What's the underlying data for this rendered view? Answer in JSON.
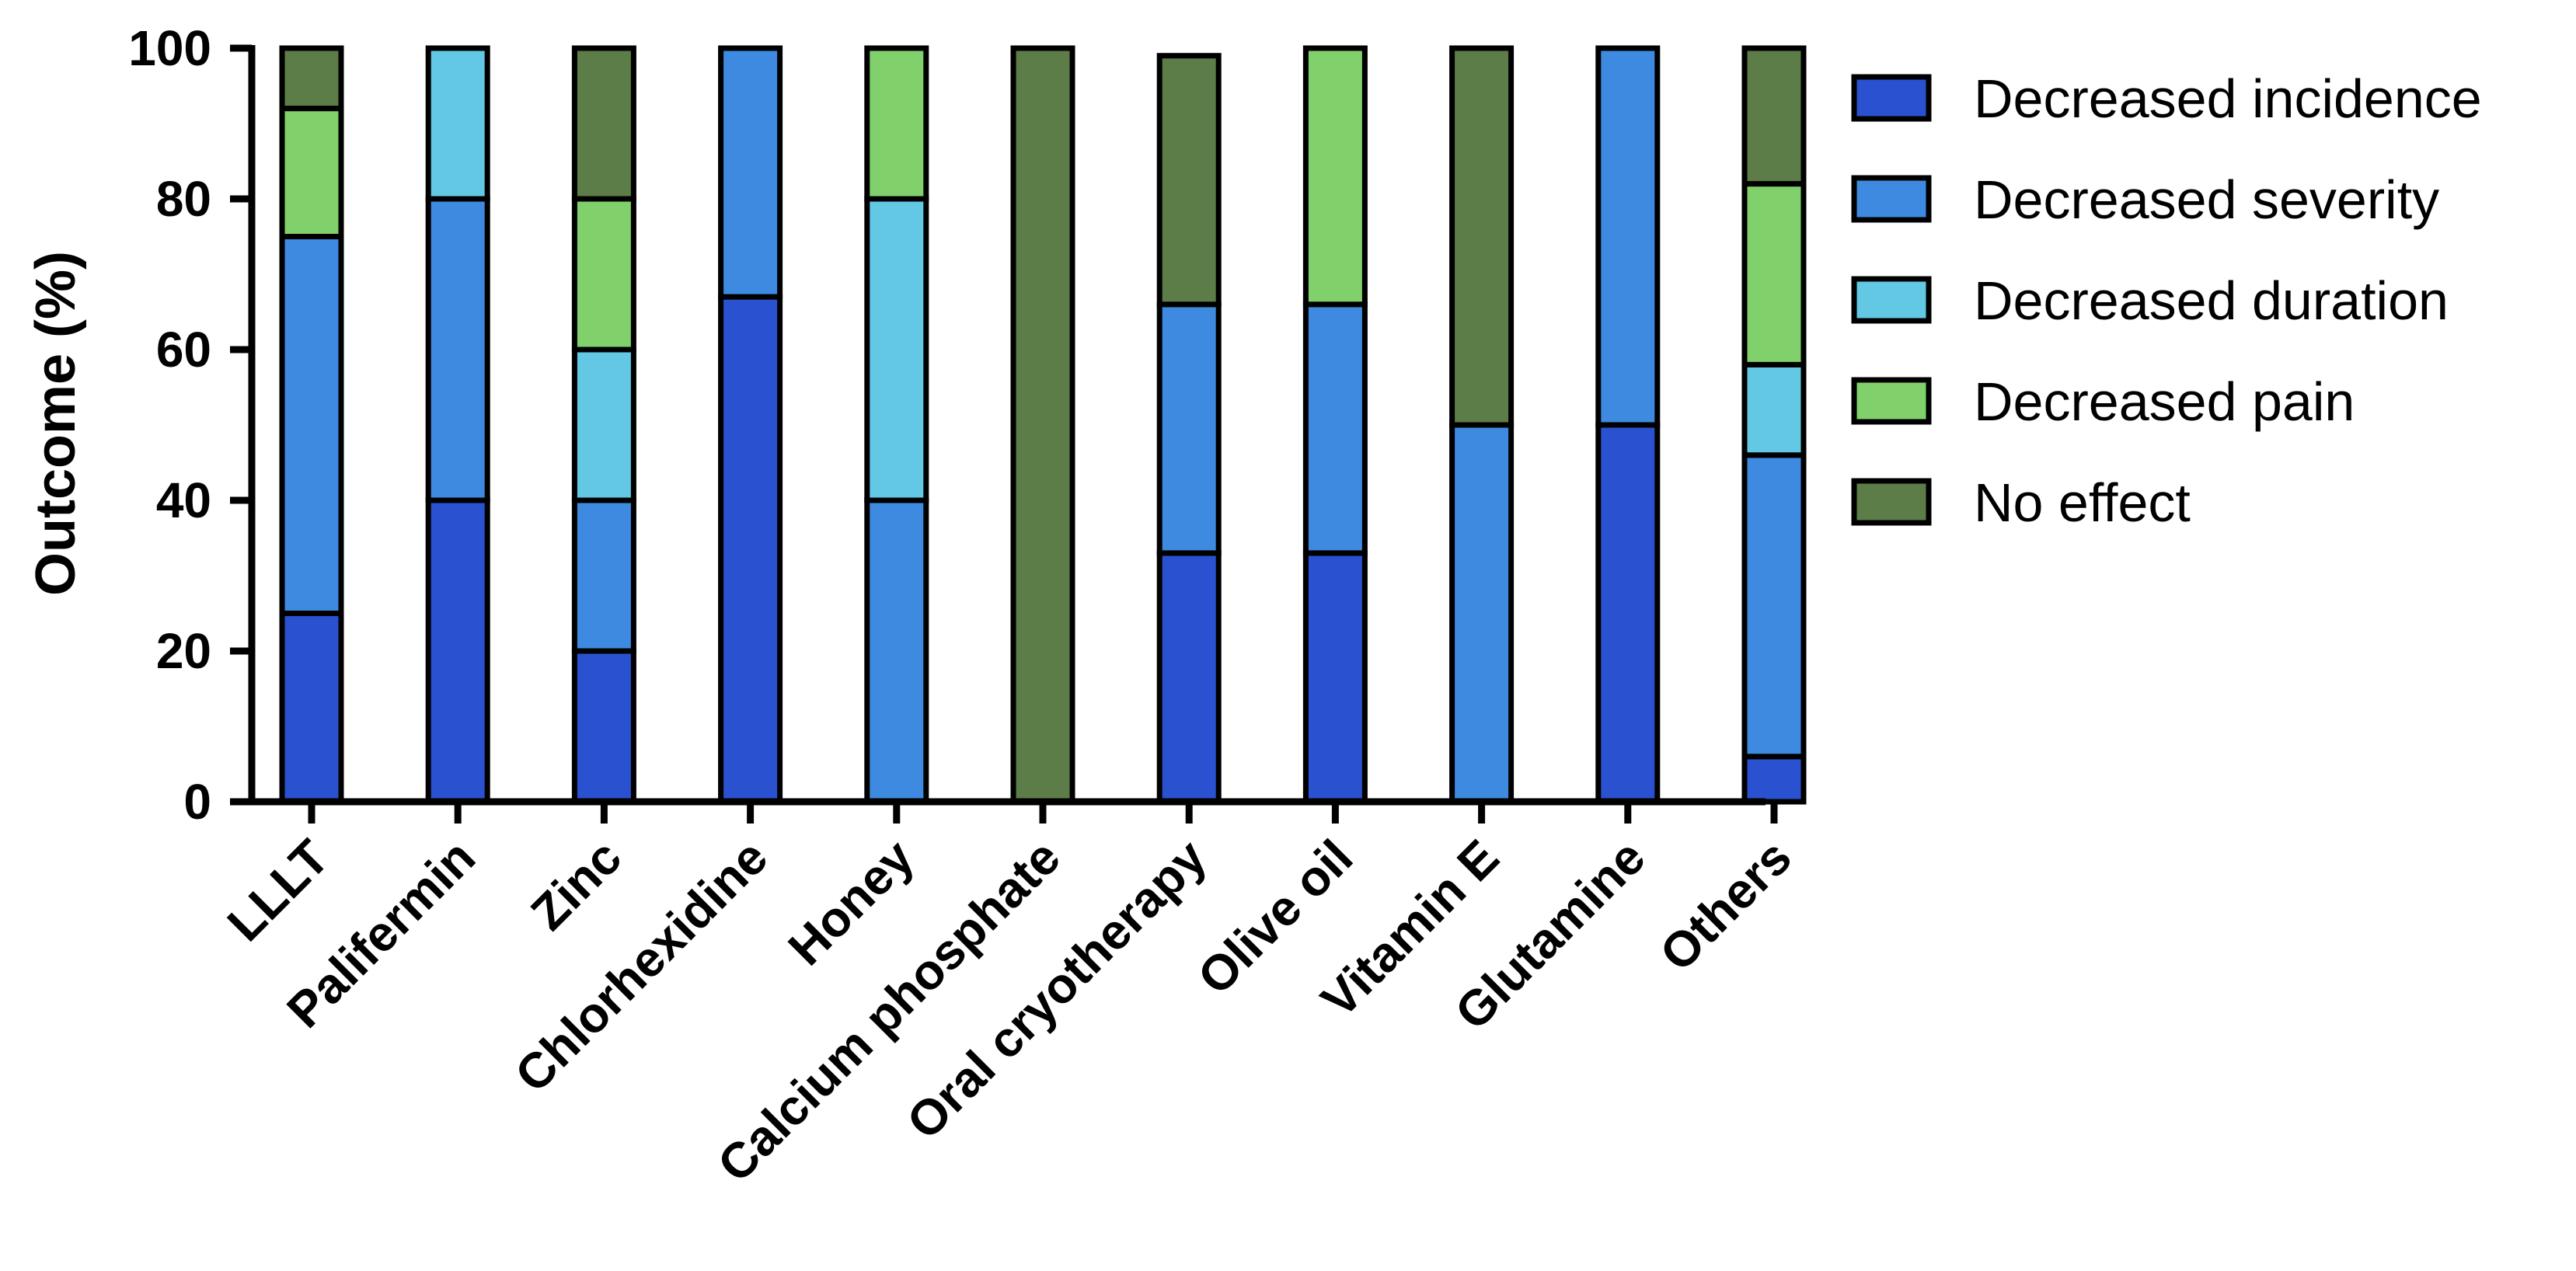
{
  "chart_data": {
    "type": "bar",
    "stacked": true,
    "ylabel": "Outcome (%)",
    "xlabel": "",
    "title": "",
    "ylim": [
      0,
      100
    ],
    "yticks": [
      0,
      20,
      40,
      60,
      80,
      100
    ],
    "grid": false,
    "legend_position": "right",
    "categories": [
      "LLLT",
      "Palifermin",
      "Zinc",
      "Chlorhexidine",
      "Honey",
      "Calcium phosphate",
      "Oral cryotherapy",
      "Olive oil",
      "Vitamin E",
      "Glutamine",
      "Others"
    ],
    "series": [
      {
        "name": "Decreased incidence",
        "color": "#2a52d0",
        "values": [
          25,
          40,
          20,
          67,
          0,
          0,
          33,
          33,
          0,
          50,
          6
        ]
      },
      {
        "name": "Decreased severity",
        "color": "#3d8ae0",
        "values": [
          50,
          40,
          20,
          33,
          40,
          0,
          33,
          33,
          50,
          50,
          40
        ]
      },
      {
        "name": "Decreased duration",
        "color": "#62c8e4",
        "values": [
          0,
          20,
          20,
          0,
          40,
          0,
          0,
          0,
          0,
          0,
          12
        ]
      },
      {
        "name": "Decreased pain",
        "color": "#80d06c",
        "values": [
          17,
          0,
          20,
          0,
          20,
          0,
          0,
          34,
          0,
          0,
          24
        ]
      },
      {
        "name": "No effect",
        "color": "#5c7c48",
        "values": [
          8,
          0,
          20,
          0,
          0,
          100,
          33,
          0,
          50,
          0,
          18
        ]
      }
    ]
  }
}
